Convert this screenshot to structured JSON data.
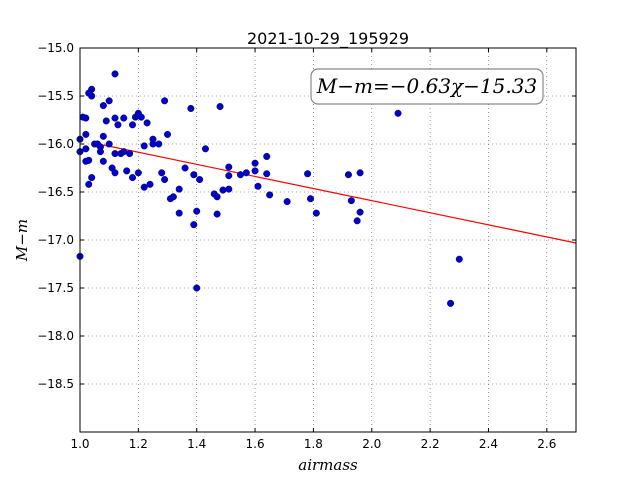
{
  "chart_data": {
    "type": "scatter",
    "title": "2021-10-29_195929",
    "xlabel": "airmass",
    "ylabel": "M−m",
    "xlim": [
      1.0,
      2.7
    ],
    "ylim": [
      -19.0,
      -15.0
    ],
    "y_inverted": true,
    "grid": true,
    "xticks": [
      1.0,
      1.2,
      1.4,
      1.6,
      1.8,
      2.0,
      2.2,
      2.4,
      2.6
    ],
    "xtick_labels": [
      "1.0",
      "1.2",
      "1.4",
      "1.6",
      "1.8",
      "2.0",
      "2.2",
      "2.4",
      "2.6"
    ],
    "yticks": [
      -15.0,
      -15.5,
      -16.0,
      -16.5,
      -17.0,
      -17.5,
      -18.0,
      -18.5
    ],
    "ytick_labels": [
      "−15.0",
      "−15.5",
      "−16.0",
      "−16.5",
      "−17.0",
      "−17.5",
      "−18.0",
      "−18.5"
    ],
    "annotation": "M−m=−0.63χ−15.33",
    "fit": {
      "slope": -0.63,
      "intercept": -15.33,
      "color": "#ff0000"
    },
    "point_color": "#0000cc",
    "points": [
      [
        1.0,
        -15.95
      ],
      [
        1.0,
        -16.08
      ],
      [
        1.0,
        -17.17
      ],
      [
        1.02,
        -15.73
      ],
      [
        1.01,
        -15.72
      ],
      [
        1.02,
        -15.9
      ],
      [
        1.02,
        -16.05
      ],
      [
        1.02,
        -16.18
      ],
      [
        1.03,
        -16.17
      ],
      [
        1.03,
        -16.42
      ],
      [
        1.03,
        -15.47
      ],
      [
        1.04,
        -15.43
      ],
      [
        1.04,
        -15.5
      ],
      [
        1.04,
        -16.35
      ],
      [
        1.05,
        -16.0
      ],
      [
        1.06,
        -16.0
      ],
      [
        1.07,
        -16.03
      ],
      [
        1.07,
        -16.08
      ],
      [
        1.08,
        -15.6
      ],
      [
        1.08,
        -15.92
      ],
      [
        1.08,
        -16.18
      ],
      [
        1.09,
        -15.76
      ],
      [
        1.1,
        -15.55
      ],
      [
        1.1,
        -16.0
      ],
      [
        1.11,
        -16.25
      ],
      [
        1.12,
        -16.3
      ],
      [
        1.12,
        -16.1
      ],
      [
        1.12,
        -15.73
      ],
      [
        1.13,
        -15.8
      ],
      [
        1.12,
        -15.27
      ],
      [
        1.14,
        -16.1
      ],
      [
        1.15,
        -16.08
      ],
      [
        1.15,
        -15.73
      ],
      [
        1.16,
        -16.28
      ],
      [
        1.17,
        -16.1
      ],
      [
        1.18,
        -15.8
      ],
      [
        1.19,
        -15.72
      ],
      [
        1.2,
        -15.68
      ],
      [
        1.21,
        -15.72
      ],
      [
        1.18,
        -16.35
      ],
      [
        1.2,
        -16.3
      ],
      [
        1.22,
        -16.45
      ],
      [
        1.22,
        -16.02
      ],
      [
        1.23,
        -15.78
      ],
      [
        1.24,
        -16.42
      ],
      [
        1.25,
        -16.0
      ],
      [
        1.25,
        -15.95
      ],
      [
        1.27,
        -16.0
      ],
      [
        1.28,
        -16.3
      ],
      [
        1.29,
        -16.37
      ],
      [
        1.29,
        -15.55
      ],
      [
        1.3,
        -15.9
      ],
      [
        1.31,
        -16.57
      ],
      [
        1.32,
        -16.55
      ],
      [
        1.34,
        -16.72
      ],
      [
        1.34,
        -16.47
      ],
      [
        1.36,
        -16.25
      ],
      [
        1.38,
        -15.63
      ],
      [
        1.39,
        -16.32
      ],
      [
        1.39,
        -16.84
      ],
      [
        1.4,
        -16.7
      ],
      [
        1.41,
        -16.37
      ],
      [
        1.4,
        -17.5
      ],
      [
        1.43,
        -16.05
      ],
      [
        1.46,
        -16.52
      ],
      [
        1.47,
        -16.55
      ],
      [
        1.47,
        -16.73
      ],
      [
        1.48,
        -15.61
      ],
      [
        1.49,
        -16.48
      ],
      [
        1.51,
        -16.33
      ],
      [
        1.51,
        -16.47
      ],
      [
        1.51,
        -16.24
      ],
      [
        1.55,
        -16.32
      ],
      [
        1.57,
        -16.3
      ],
      [
        1.6,
        -16.28
      ],
      [
        1.6,
        -16.2
      ],
      [
        1.61,
        -16.44
      ],
      [
        1.64,
        -16.13
      ],
      [
        1.64,
        -16.31
      ],
      [
        1.65,
        -16.53
      ],
      [
        1.71,
        -16.6
      ],
      [
        1.78,
        -16.31
      ],
      [
        1.79,
        -16.57
      ],
      [
        1.81,
        -16.72
      ],
      [
        1.92,
        -16.32
      ],
      [
        1.93,
        -16.59
      ],
      [
        1.95,
        -16.8
      ],
      [
        1.96,
        -16.3
      ],
      [
        1.96,
        -16.71
      ],
      [
        2.09,
        -15.68
      ],
      [
        2.27,
        -17.66
      ],
      [
        2.3,
        -17.2
      ]
    ]
  }
}
